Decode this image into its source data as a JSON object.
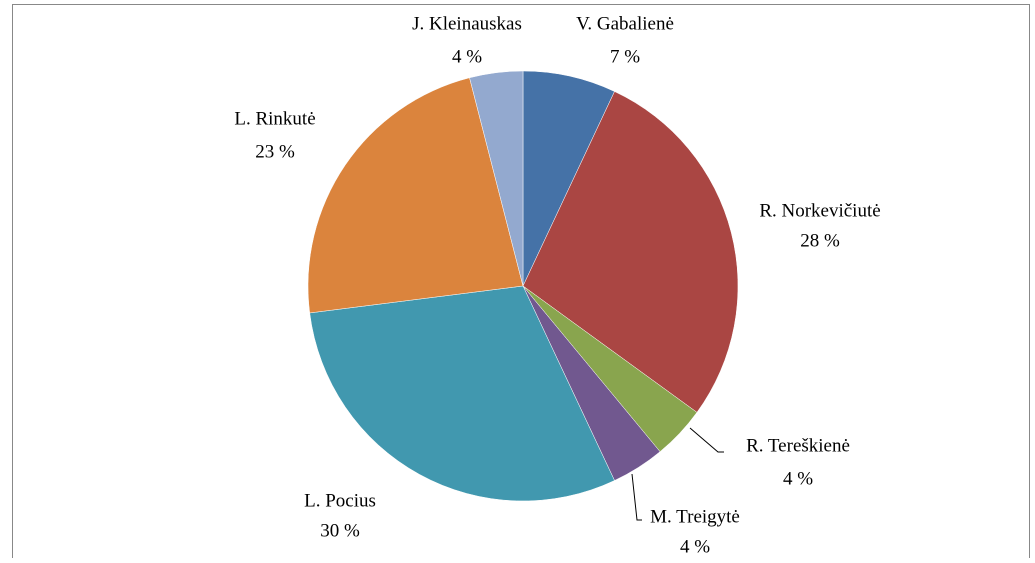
{
  "chart_data": {
    "type": "pie",
    "categories": [
      "V. Gabalienė",
      "R. Norkevičiutė",
      "R. Tereškienė",
      "M. Treigytė",
      "L. Pocius",
      "L. Rinkutė",
      "J. Kleinauskas"
    ],
    "values": [
      7,
      28,
      4,
      4,
      30,
      23,
      4
    ],
    "value_labels": [
      "7 %",
      "28 %",
      "4 %",
      "4 %",
      "30 %",
      "23 %",
      "4 %"
    ],
    "colors": [
      "#4572A7",
      "#AA4643",
      "#89A54E",
      "#71588F",
      "#4198AF",
      "#DB843D",
      "#93A9CF"
    ]
  }
}
